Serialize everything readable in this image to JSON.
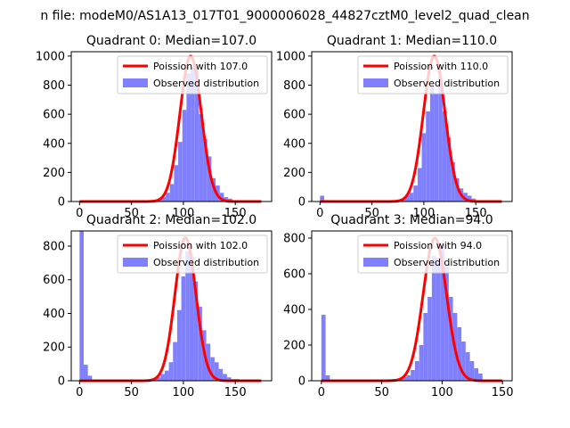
{
  "figure": {
    "suptitle": "n file: modeM0/AS1A13_017T01_9000006028_44827cztM0_level2_quad_clean"
  },
  "colors": {
    "poisson": "#ff0000",
    "observed": "#8080ff"
  },
  "chart_data": [
    {
      "type": "bar",
      "title": "Quadrant 0: Median=107.0",
      "xticks": [
        0,
        50,
        100,
        150
      ],
      "yticks": [
        0,
        200,
        400,
        600,
        800,
        1000
      ],
      "xlim": [
        -8,
        185
      ],
      "ylim": [
        0,
        1030
      ],
      "series": [
        {
          "name": "Poission with 107.0",
          "type": "line",
          "mean": 107.0,
          "peak": 1000,
          "x_range": [
            0,
            175
          ]
        },
        {
          "name": "Observed distribution",
          "type": "histogram",
          "bin_width": 4,
          "bin_starts": [
            75,
            79,
            83,
            87,
            91,
            95,
            99,
            103,
            107,
            111,
            115,
            119,
            123,
            127,
            131,
            135,
            139,
            143
          ],
          "counts": [
            20,
            30,
            60,
            120,
            250,
            410,
            630,
            880,
            920,
            900,
            600,
            430,
            310,
            160,
            110,
            60,
            30,
            20
          ]
        }
      ],
      "legend_position": "upper right"
    },
    {
      "type": "bar",
      "title": "Quadrant 1: Median=110.0",
      "xticks": [
        0,
        50,
        100,
        150
      ],
      "yticks": [
        0,
        200,
        400,
        600,
        800,
        1000
      ],
      "xlim": [
        -8,
        185
      ],
      "ylim": [
        0,
        1030
      ],
      "series": [
        {
          "name": "Poission with 110.0",
          "type": "line",
          "mean": 110.0,
          "peak": 1000,
          "x_range": [
            0,
            175
          ]
        },
        {
          "name": "Observed distribution",
          "type": "histogram",
          "bin_width": 4,
          "bin_starts": [
            0,
            4,
            78,
            82,
            86,
            90,
            94,
            98,
            102,
            106,
            110,
            114,
            118,
            122,
            126,
            130,
            134,
            138,
            142,
            146
          ],
          "counts": [
            40,
            10,
            20,
            40,
            60,
            110,
            230,
            470,
            620,
            790,
            740,
            860,
            620,
            440,
            270,
            160,
            90,
            60,
            40,
            20
          ]
        }
      ],
      "legend_position": "upper right"
    },
    {
      "type": "bar",
      "title": "Quadrant 2: Median=102.0",
      "xticks": [
        0,
        50,
        100,
        150
      ],
      "yticks": [
        0,
        200,
        400,
        600,
        800
      ],
      "xlim": [
        -8,
        185
      ],
      "ylim": [
        0,
        890
      ],
      "series": [
        {
          "name": "Poission with 102.0",
          "type": "line",
          "mean": 102.0,
          "peak": 850,
          "x_range": [
            0,
            175
          ]
        },
        {
          "name": "Observed distribution",
          "type": "histogram",
          "bin_width": 4,
          "bin_starts": [
            0,
            4,
            8,
            70,
            74,
            78,
            82,
            86,
            90,
            94,
            98,
            102,
            106,
            110,
            114,
            118,
            122,
            126,
            130,
            134,
            138,
            142,
            146,
            150
          ],
          "counts": [
            890,
            95,
            30,
            10,
            20,
            40,
            60,
            110,
            230,
            420,
            620,
            770,
            740,
            590,
            440,
            300,
            220,
            140,
            110,
            70,
            40,
            20,
            10,
            10
          ]
        }
      ],
      "legend_position": "upper right"
    },
    {
      "type": "bar",
      "title": "Quadrant 3: Median=94.0",
      "xticks": [
        0,
        50,
        100,
        150
      ],
      "yticks": [
        0,
        200,
        400,
        600,
        800
      ],
      "xlim": [
        -8,
        158
      ],
      "ylim": [
        0,
        840
      ],
      "series": [
        {
          "name": "Poission with 94.0",
          "type": "line",
          "mean": 94.0,
          "peak": 800,
          "x_range": [
            0,
            150
          ]
        },
        {
          "name": "Observed distribution",
          "type": "histogram",
          "bin_width": 3.5,
          "bin_starts": [
            0,
            3.5,
            60,
            63.5,
            67,
            70.5,
            74,
            77.5,
            81,
            84.5,
            88,
            91.5,
            95,
            98.5,
            102,
            105.5,
            109,
            112.5,
            116,
            119.5,
            123,
            126.5,
            130
          ],
          "counts": [
            370,
            30,
            10,
            10,
            20,
            30,
            60,
            110,
            200,
            380,
            470,
            700,
            690,
            760,
            640,
            470,
            380,
            300,
            220,
            160,
            110,
            70,
            40
          ]
        }
      ],
      "legend_position": "upper right"
    }
  ]
}
